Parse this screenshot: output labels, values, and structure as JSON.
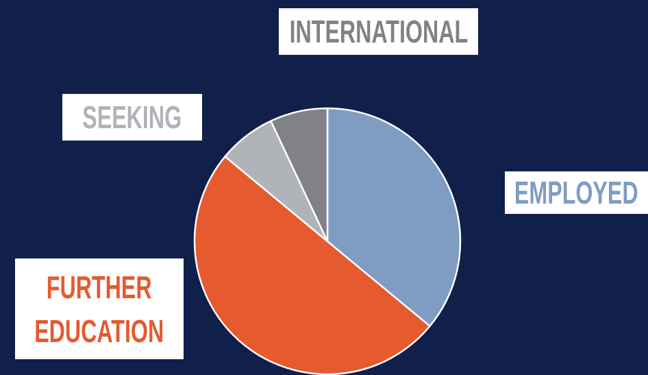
{
  "chart_data": {
    "type": "pie",
    "categories": [
      "EMPLOYED",
      "FURTHER EDUCATION",
      "SEEKING",
      "INTERNATIONAL"
    ],
    "values": [
      36,
      50,
      7,
      7
    ],
    "colors": [
      "#7f9cc2",
      "#e55a2e",
      "#b0b3b8",
      "#808287"
    ]
  }
}
